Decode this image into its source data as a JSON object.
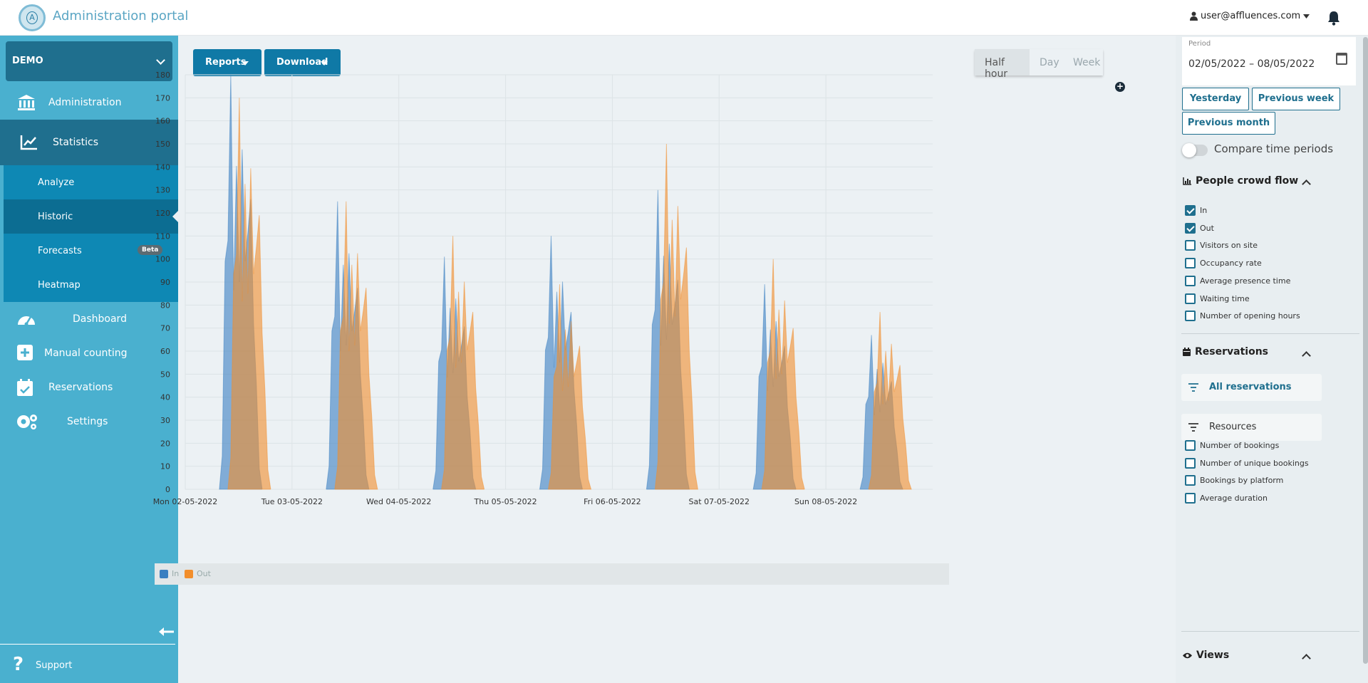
{
  "header": {
    "app_title": "Administration portal",
    "logo_letter": "A",
    "user_email": "user@affluences.com"
  },
  "sidebar": {
    "org_name": "DEMO",
    "items": [
      {
        "label": "Administration",
        "icon": "bank-icon"
      },
      {
        "label": "Statistics",
        "icon": "chart-line-icon"
      },
      {
        "label": "Dashboard",
        "icon": "gauge-icon"
      },
      {
        "label": "Manual counting",
        "icon": "plus-square-icon"
      },
      {
        "label": "Reservations",
        "icon": "calendar-check-icon"
      },
      {
        "label": "Settings",
        "icon": "gears-icon"
      }
    ],
    "sub_items": [
      {
        "label": "Analyze"
      },
      {
        "label": "Historic",
        "active": true
      },
      {
        "label": "Forecasts",
        "badge": "Beta"
      },
      {
        "label": "Heatmap"
      }
    ],
    "support_label": "Support"
  },
  "toolbar": {
    "reports_label": "Reports",
    "download_label": "Download",
    "granularity": [
      "Half hour",
      "Day",
      "Week"
    ],
    "granularity_selected": "Half hour"
  },
  "chart_data": {
    "type": "area",
    "x_labels": [
      "Mon 02-05-2022",
      "Tue 03-05-2022",
      "Wed 04-05-2022",
      "Thu 05-05-2022",
      "Fri 06-05-2022",
      "Sat 07-05-2022",
      "Sun 08-05-2022"
    ],
    "ylim": [
      0,
      180
    ],
    "y_ticks": [
      0,
      10,
      20,
      30,
      40,
      50,
      60,
      70,
      80,
      90,
      100,
      110,
      120,
      130,
      140,
      150,
      160,
      170,
      180
    ],
    "grid": true,
    "legend_position": "bottom-left",
    "series": [
      {
        "name": "In",
        "color": "#3a7fc1",
        "peaks_by_day": [
          180,
          125,
          101,
          110,
          130,
          89,
          67
        ]
      },
      {
        "name": "Out",
        "color": "#f28e2b",
        "peaks_by_day": [
          170,
          125,
          110,
          89,
          150,
          100,
          77
        ]
      }
    ]
  },
  "right_panel": {
    "period_label": "Period",
    "period_value": "02/05/2022 – 08/05/2022",
    "quick_buttons": [
      "Yesterday",
      "Previous week",
      "Previous month"
    ],
    "compare_label": "Compare time periods",
    "compare_enabled": false,
    "crowd_title": "People crowd flow",
    "crowd_items": [
      {
        "label": "In",
        "checked": true
      },
      {
        "label": "Out",
        "checked": true
      },
      {
        "label": "Visitors on site",
        "checked": false
      },
      {
        "label": "Occupancy rate",
        "checked": false
      },
      {
        "label": "Average presence time",
        "checked": false
      },
      {
        "label": "Waiting time",
        "checked": false
      },
      {
        "label": "Number of opening hours",
        "checked": false
      }
    ],
    "reservations_title": "Reservations",
    "res_filters": [
      "All reservations",
      "Resources"
    ],
    "res_items": [
      {
        "label": "Number of bookings",
        "checked": false
      },
      {
        "label": "Number of unique bookings",
        "checked": false
      },
      {
        "label": "Bookings by platform",
        "checked": false
      },
      {
        "label": "Average duration",
        "checked": false
      }
    ],
    "views_title": "Views"
  }
}
